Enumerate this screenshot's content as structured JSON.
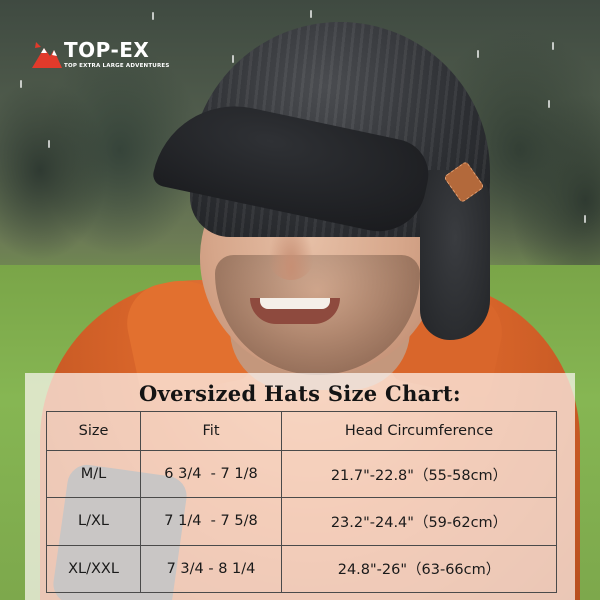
{
  "brand": {
    "name": "TOP-EX",
    "tagline": "TOP EXTRA LARGE ADVENTURES",
    "accent_color": "#e23a2b"
  },
  "photo": {
    "icon": "man-wearing-knit-brimmed-beanie-photo"
  },
  "size_chart": {
    "title": "Oversized Hats Size Chart:",
    "headers": [
      "Size",
      "Fit",
      "Head Circumference"
    ],
    "rows": [
      {
        "size": "M/L",
        "fit": "6 3/4  - 7 1/8",
        "head": "21.7\"-22.8\"（55-58cm）"
      },
      {
        "size": "L/XL",
        "fit": "7 1/4  - 7 5/8",
        "head": "23.2\"-24.4\"（59-62cm）"
      },
      {
        "size": "XL/XXL",
        "fit": "7 3/4 - 8 1/4",
        "head": "24.8\"-26\"（63-66cm）"
      }
    ]
  }
}
